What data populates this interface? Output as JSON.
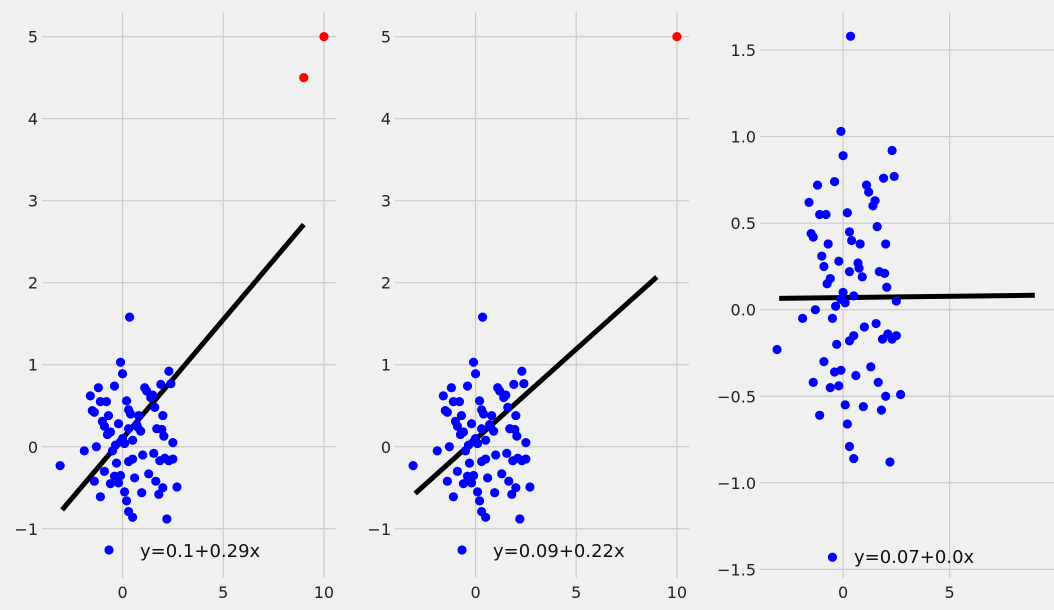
{
  "chart_data": [
    {
      "type": "scatter",
      "xlim": [
        -4.0,
        10.6
      ],
      "ylim": [
        -1.6,
        5.3
      ],
      "xticks": [
        0,
        5,
        10
      ],
      "xtick_labels": [
        "0",
        "5",
        "10"
      ],
      "yticks": [
        -1,
        0,
        1,
        2,
        3,
        4,
        5
      ],
      "ytick_labels": [
        "−1",
        "0",
        "1",
        "2",
        "3",
        "4",
        "5"
      ],
      "grid": true,
      "series": [
        {
          "name": "data",
          "color": "#0000ff",
          "points": [
            [
              -3.1,
              -0.23
            ],
            [
              -1.9,
              -0.05
            ],
            [
              -1.6,
              0.62
            ],
            [
              -1.5,
              0.44
            ],
            [
              -1.4,
              0.42
            ],
            [
              -1.3,
              0.0
            ],
            [
              -1.2,
              0.72
            ],
            [
              -1.1,
              0.55
            ],
            [
              -1.0,
              0.31
            ],
            [
              -0.9,
              0.25
            ],
            [
              -0.8,
              0.55
            ],
            [
              -0.75,
              0.15
            ],
            [
              -0.7,
              0.38
            ],
            [
              -0.6,
              0.18
            ],
            [
              -0.5,
              -0.05
            ],
            [
              -0.4,
              0.74
            ],
            [
              -0.35,
              0.02
            ],
            [
              -0.3,
              -0.2
            ],
            [
              -0.2,
              -0.44
            ],
            [
              -0.1,
              0.06
            ],
            [
              0.0,
              0.1
            ],
            [
              -1.4,
              -0.42
            ],
            [
              -1.1,
              -0.61
            ],
            [
              -0.9,
              -0.3
            ],
            [
              -0.6,
              -0.45
            ],
            [
              -0.4,
              -0.36
            ],
            [
              -0.2,
              0.28
            ],
            [
              -0.1,
              1.03
            ],
            [
              0.0,
              0.89
            ],
            [
              -0.1,
              -0.35
            ],
            [
              0.1,
              0.04
            ],
            [
              0.1,
              -0.55
            ],
            [
              0.2,
              -0.66
            ],
            [
              0.2,
              0.56
            ],
            [
              0.3,
              0.45
            ],
            [
              0.4,
              0.4
            ],
            [
              0.3,
              -0.79
            ],
            [
              0.5,
              -0.86
            ],
            [
              0.3,
              0.22
            ],
            [
              0.3,
              -0.18
            ],
            [
              0.35,
              1.58
            ],
            [
              0.5,
              0.08
            ],
            [
              0.5,
              -0.15
            ],
            [
              0.6,
              -0.38
            ],
            [
              0.7,
              0.27
            ],
            [
              0.75,
              0.24
            ],
            [
              0.8,
              0.38
            ],
            [
              0.9,
              0.19
            ],
            [
              0.95,
              -0.56
            ],
            [
              1.0,
              -0.1
            ],
            [
              1.1,
              0.72
            ],
            [
              1.2,
              0.68
            ],
            [
              1.3,
              -0.33
            ],
            [
              1.4,
              0.6
            ],
            [
              1.5,
              0.63
            ],
            [
              1.55,
              -0.08
            ],
            [
              1.6,
              0.48
            ],
            [
              1.65,
              -0.42
            ],
            [
              1.7,
              0.22
            ],
            [
              1.8,
              -0.58
            ],
            [
              1.85,
              -0.17
            ],
            [
              1.9,
              0.76
            ],
            [
              1.95,
              0.21
            ],
            [
              2.0,
              -0.5
            ],
            [
              2.0,
              0.38
            ],
            [
              2.05,
              0.13
            ],
            [
              2.1,
              -0.14
            ],
            [
              2.2,
              -0.88
            ],
            [
              2.3,
              0.92
            ],
            [
              2.3,
              -0.17
            ],
            [
              2.4,
              0.77
            ],
            [
              2.5,
              0.05
            ],
            [
              2.5,
              -0.15
            ],
            [
              2.7,
              -0.49
            ]
          ]
        },
        {
          "name": "outliers",
          "color": "#ff0000",
          "points": [
            [
              9.0,
              4.5
            ],
            [
              10.0,
              5.0
            ]
          ]
        }
      ],
      "fit_line": {
        "x": [
          -3.0,
          9.0
        ],
        "intercept": 0.1,
        "slope": 0.29,
        "color": "#000000"
      },
      "legend": {
        "label": "y=0.1+0.29x",
        "position": "bottom-center"
      }
    },
    {
      "type": "scatter",
      "xlim": [
        -4.0,
        10.6
      ],
      "ylim": [
        -1.6,
        5.3
      ],
      "xticks": [
        0,
        5,
        10
      ],
      "xtick_labels": [
        "0",
        "5",
        "10"
      ],
      "yticks": [
        -1,
        0,
        1,
        2,
        3,
        4,
        5
      ],
      "ytick_labels": [
        "−1",
        "0",
        "1",
        "2",
        "3",
        "4",
        "5"
      ],
      "grid": true,
      "series": [
        {
          "name": "data",
          "color": "#0000ff",
          "points": [
            [
              -3.1,
              -0.23
            ],
            [
              -1.9,
              -0.05
            ],
            [
              -1.6,
              0.62
            ],
            [
              -1.5,
              0.44
            ],
            [
              -1.4,
              0.42
            ],
            [
              -1.3,
              0.0
            ],
            [
              -1.2,
              0.72
            ],
            [
              -1.1,
              0.55
            ],
            [
              -1.0,
              0.31
            ],
            [
              -0.9,
              0.25
            ],
            [
              -0.8,
              0.55
            ],
            [
              -0.75,
              0.15
            ],
            [
              -0.7,
              0.38
            ],
            [
              -0.6,
              0.18
            ],
            [
              -0.5,
              -0.05
            ],
            [
              -0.4,
              0.74
            ],
            [
              -0.35,
              0.02
            ],
            [
              -0.3,
              -0.2
            ],
            [
              -0.2,
              -0.44
            ],
            [
              -0.1,
              0.06
            ],
            [
              0.0,
              0.1
            ],
            [
              -1.4,
              -0.42
            ],
            [
              -1.1,
              -0.61
            ],
            [
              -0.9,
              -0.3
            ],
            [
              -0.6,
              -0.45
            ],
            [
              -0.4,
              -0.36
            ],
            [
              -0.2,
              0.28
            ],
            [
              -0.1,
              1.03
            ],
            [
              0.0,
              0.89
            ],
            [
              -0.1,
              -0.35
            ],
            [
              0.1,
              0.04
            ],
            [
              0.1,
              -0.55
            ],
            [
              0.2,
              -0.66
            ],
            [
              0.2,
              0.56
            ],
            [
              0.3,
              0.45
            ],
            [
              0.4,
              0.4
            ],
            [
              0.3,
              -0.79
            ],
            [
              0.5,
              -0.86
            ],
            [
              0.3,
              0.22
            ],
            [
              0.3,
              -0.18
            ],
            [
              0.35,
              1.58
            ],
            [
              0.5,
              0.08
            ],
            [
              0.5,
              -0.15
            ],
            [
              0.6,
              -0.38
            ],
            [
              0.7,
              0.27
            ],
            [
              0.75,
              0.24
            ],
            [
              0.8,
              0.38
            ],
            [
              0.9,
              0.19
            ],
            [
              0.95,
              -0.56
            ],
            [
              1.0,
              -0.1
            ],
            [
              1.1,
              0.72
            ],
            [
              1.2,
              0.68
            ],
            [
              1.3,
              -0.33
            ],
            [
              1.4,
              0.6
            ],
            [
              1.5,
              0.63
            ],
            [
              1.55,
              -0.08
            ],
            [
              1.6,
              0.48
            ],
            [
              1.65,
              -0.42
            ],
            [
              1.7,
              0.22
            ],
            [
              1.8,
              -0.58
            ],
            [
              1.85,
              -0.17
            ],
            [
              1.9,
              0.76
            ],
            [
              1.95,
              0.21
            ],
            [
              2.0,
              -0.5
            ],
            [
              2.0,
              0.38
            ],
            [
              2.05,
              0.13
            ],
            [
              2.1,
              -0.14
            ],
            [
              2.2,
              -0.88
            ],
            [
              2.3,
              0.92
            ],
            [
              2.3,
              -0.17
            ],
            [
              2.4,
              0.77
            ],
            [
              2.5,
              0.05
            ],
            [
              2.5,
              -0.15
            ],
            [
              2.7,
              -0.49
            ]
          ]
        },
        {
          "name": "outliers",
          "color": "#ff0000",
          "points": [
            [
              10.0,
              5.0
            ]
          ]
        }
      ],
      "fit_line": {
        "x": [
          -3.0,
          9.0
        ],
        "intercept": 0.09,
        "slope": 0.22,
        "color": "#000000"
      },
      "legend": {
        "label": "y=0.09+0.22x",
        "position": "bottom-center"
      }
    },
    {
      "type": "scatter",
      "xlim": [
        -3.9,
        9.9
      ],
      "ylim": [
        -1.55,
        1.72
      ],
      "xticks": [
        0,
        5
      ],
      "xtick_labels": [
        "0",
        "5"
      ],
      "yticks": [
        -1.5,
        -1.0,
        -0.5,
        0.0,
        0.5,
        1.0,
        1.5
      ],
      "ytick_labels": [
        "−1.5",
        "−1.0",
        "−0.5",
        "0.0",
        "0.5",
        "1.0",
        "1.5"
      ],
      "grid": true,
      "series": [
        {
          "name": "data",
          "color": "#0000ff",
          "points": [
            [
              -3.1,
              -0.23
            ],
            [
              -1.9,
              -0.05
            ],
            [
              -1.6,
              0.62
            ],
            [
              -1.5,
              0.44
            ],
            [
              -1.4,
              0.42
            ],
            [
              -1.3,
              0.0
            ],
            [
              -1.2,
              0.72
            ],
            [
              -1.1,
              0.55
            ],
            [
              -1.0,
              0.31
            ],
            [
              -0.9,
              0.25
            ],
            [
              -0.8,
              0.55
            ],
            [
              -0.75,
              0.15
            ],
            [
              -0.7,
              0.38
            ],
            [
              -0.6,
              0.18
            ],
            [
              -0.5,
              -0.05
            ],
            [
              -0.4,
              0.74
            ],
            [
              -0.35,
              0.02
            ],
            [
              -0.3,
              -0.2
            ],
            [
              -0.2,
              -0.44
            ],
            [
              -0.1,
              0.06
            ],
            [
              0.0,
              0.1
            ],
            [
              -1.4,
              -0.42
            ],
            [
              -1.1,
              -0.61
            ],
            [
              -0.9,
              -0.3
            ],
            [
              -0.6,
              -0.45
            ],
            [
              -0.4,
              -0.36
            ],
            [
              -0.2,
              0.28
            ],
            [
              -0.1,
              1.03
            ],
            [
              0.0,
              0.89
            ],
            [
              -0.1,
              -0.35
            ],
            [
              0.1,
              0.04
            ],
            [
              0.1,
              -0.55
            ],
            [
              0.2,
              -0.66
            ],
            [
              0.2,
              0.56
            ],
            [
              0.3,
              0.45
            ],
            [
              0.4,
              0.4
            ],
            [
              0.3,
              -0.79
            ],
            [
              0.5,
              -0.86
            ],
            [
              0.3,
              0.22
            ],
            [
              0.3,
              -0.18
            ],
            [
              0.35,
              1.58
            ],
            [
              0.5,
              0.08
            ],
            [
              0.5,
              -0.15
            ],
            [
              0.6,
              -0.38
            ],
            [
              0.7,
              0.27
            ],
            [
              0.75,
              0.24
            ],
            [
              0.8,
              0.38
            ],
            [
              0.9,
              0.19
            ],
            [
              0.95,
              -0.56
            ],
            [
              1.0,
              -0.1
            ],
            [
              1.1,
              0.72
            ],
            [
              1.2,
              0.68
            ],
            [
              1.3,
              -0.33
            ],
            [
              1.4,
              0.6
            ],
            [
              1.5,
              0.63
            ],
            [
              1.55,
              -0.08
            ],
            [
              1.6,
              0.48
            ],
            [
              1.65,
              -0.42
            ],
            [
              1.7,
              0.22
            ],
            [
              1.8,
              -0.58
            ],
            [
              1.85,
              -0.17
            ],
            [
              1.9,
              0.76
            ],
            [
              1.95,
              0.21
            ],
            [
              2.0,
              -0.5
            ],
            [
              2.0,
              0.38
            ],
            [
              2.05,
              0.13
            ],
            [
              2.1,
              -0.14
            ],
            [
              2.2,
              -0.88
            ],
            [
              2.3,
              0.92
            ],
            [
              2.3,
              -0.17
            ],
            [
              2.4,
              0.77
            ],
            [
              2.5,
              0.05
            ],
            [
              2.5,
              -0.15
            ],
            [
              2.7,
              -0.49
            ],
            [
              -0.5,
              -1.43
            ]
          ]
        }
      ],
      "fit_line": {
        "x": [
          -3.0,
          9.0
        ],
        "intercept": 0.07,
        "slope": 0.0015,
        "color": "#000000"
      },
      "legend": {
        "label": "y=0.07+0.0x",
        "position": "bottom-center"
      }
    }
  ]
}
